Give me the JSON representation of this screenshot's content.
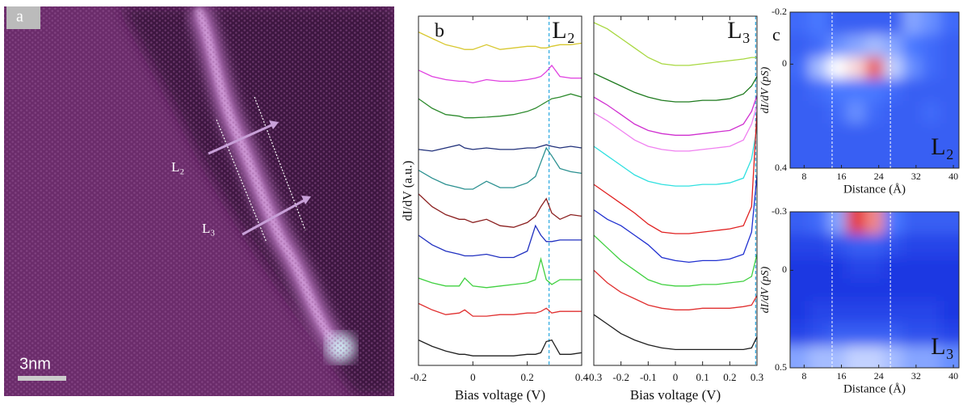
{
  "panel_a": {
    "label": "a",
    "line_labels": [
      "L₂",
      "L₃"
    ],
    "scale_bar": "3nm"
  },
  "chart_data": [
    {
      "type": "line",
      "label": "b",
      "inset_label": "L₂",
      "xlabel": "Bias voltage (V)",
      "ylabel": "dI/dV (a.u.)",
      "x": [
        -0.2,
        -0.15,
        -0.1,
        -0.05,
        -0.03,
        0,
        0.05,
        0.1,
        0.15,
        0.2,
        0.23,
        0.25,
        0.27,
        0.29,
        0.32,
        0.36,
        0.4
      ],
      "xlim": [
        -0.2,
        0.4
      ],
      "xticks": [
        -0.2,
        0,
        0.2,
        0.4
      ],
      "ylim": [
        0,
        11
      ],
      "vlines": [
        0.28
      ],
      "vline_color": "#2aa8e0",
      "series": [
        {
          "color": "#d8c830",
          "values": [
            10.5,
            10.3,
            10.1,
            10.0,
            9.95,
            9.95,
            10.1,
            9.95,
            10.0,
            10.05,
            10.05,
            10.0,
            10.0,
            10.05,
            10.1,
            10.1,
            10.15
          ]
        },
        {
          "color": "#e040e0",
          "values": [
            9.3,
            9.1,
            9.0,
            8.95,
            8.95,
            8.9,
            9.0,
            8.95,
            8.95,
            9.0,
            9.05,
            9.1,
            9.25,
            9.45,
            9.1,
            9.05,
            9.05
          ]
        },
        {
          "color": "#2e8b2e",
          "values": [
            8.4,
            8.1,
            7.9,
            7.85,
            7.8,
            7.8,
            7.82,
            7.85,
            7.9,
            8.0,
            8.1,
            8.2,
            8.3,
            8.4,
            8.45,
            8.55,
            8.45
          ]
        },
        {
          "color": "#20307a",
          "values": [
            6.8,
            6.75,
            6.85,
            6.95,
            6.85,
            6.8,
            6.85,
            6.8,
            6.8,
            6.85,
            6.85,
            6.9,
            6.95,
            6.9,
            6.85,
            6.9,
            6.85
          ]
        },
        {
          "color": "#2a9090",
          "values": [
            6.15,
            5.9,
            5.7,
            5.6,
            5.55,
            5.55,
            5.8,
            5.6,
            5.6,
            5.75,
            5.95,
            6.4,
            6.85,
            6.6,
            6.2,
            6.1,
            6.05
          ]
        },
        {
          "color": "#8b2020",
          "values": [
            5.4,
            5.0,
            4.75,
            4.6,
            4.6,
            4.5,
            4.6,
            4.4,
            4.35,
            4.5,
            4.7,
            5.0,
            5.25,
            4.8,
            4.6,
            4.75,
            4.7
          ]
        },
        {
          "color": "#2030c0",
          "values": [
            4.1,
            3.8,
            3.6,
            3.5,
            3.45,
            3.45,
            3.5,
            3.4,
            3.4,
            3.6,
            4.4,
            4.1,
            3.9,
            3.9,
            3.95,
            3.95,
            3.95
          ]
        },
        {
          "color": "#40d040",
          "values": [
            2.75,
            2.6,
            2.5,
            2.5,
            2.75,
            2.5,
            2.45,
            2.5,
            2.55,
            2.6,
            2.7,
            3.35,
            2.7,
            2.55,
            2.7,
            2.7,
            2.7
          ]
        },
        {
          "color": "#e03030",
          "values": [
            1.95,
            1.75,
            1.6,
            1.65,
            1.75,
            1.55,
            1.55,
            1.6,
            1.6,
            1.65,
            1.65,
            1.7,
            1.8,
            1.65,
            1.7,
            1.7,
            1.7
          ]
        },
        {
          "color": "#202020",
          "values": [
            0.8,
            0.6,
            0.45,
            0.35,
            0.35,
            0.3,
            0.3,
            0.3,
            0.3,
            0.35,
            0.35,
            0.4,
            0.75,
            0.8,
            0.35,
            0.35,
            0.4
          ]
        }
      ]
    },
    {
      "type": "line",
      "inset_label": "L₃",
      "xlabel": "Bias voltage (V)",
      "x": [
        -0.3,
        -0.25,
        -0.2,
        -0.15,
        -0.1,
        -0.05,
        0,
        0.05,
        0.1,
        0.15,
        0.2,
        0.25,
        0.28,
        0.3
      ],
      "xlim": [
        -0.3,
        0.3
      ],
      "xticks": [
        -0.3,
        -0.2,
        -0.1,
        0,
        0.1,
        0.2,
        0.3
      ],
      "ylim": [
        0,
        11
      ],
      "vlines": [
        0.295
      ],
      "vline_color": "#2aa8e0",
      "series": [
        {
          "color": "#a8d840",
          "values": [
            10.8,
            10.6,
            10.3,
            10.0,
            9.7,
            9.5,
            9.45,
            9.45,
            9.5,
            9.55,
            9.6,
            9.65,
            9.7,
            9.7
          ]
        },
        {
          "color": "#1e7a1e",
          "values": [
            9.2,
            9.0,
            8.8,
            8.6,
            8.45,
            8.35,
            8.3,
            8.3,
            8.35,
            8.35,
            8.4,
            8.55,
            8.8,
            9.1
          ]
        },
        {
          "color": "#d030d0",
          "values": [
            8.45,
            8.2,
            7.9,
            7.6,
            7.4,
            7.3,
            7.25,
            7.25,
            7.3,
            7.35,
            7.4,
            7.6,
            8.0,
            8.5
          ]
        },
        {
          "color": "#f080f0",
          "values": [
            7.95,
            7.7,
            7.4,
            7.1,
            6.9,
            6.8,
            6.75,
            6.75,
            6.8,
            6.85,
            6.9,
            7.1,
            7.6,
            8.2
          ]
        },
        {
          "color": "#30e0e0",
          "values": [
            6.9,
            6.6,
            6.3,
            6.0,
            5.8,
            5.7,
            5.65,
            5.65,
            5.7,
            5.7,
            5.75,
            5.9,
            6.5,
            7.5
          ]
        },
        {
          "color": "#e02020",
          "values": [
            5.7,
            5.4,
            5.1,
            4.8,
            4.45,
            4.2,
            4.15,
            4.15,
            4.2,
            4.25,
            4.3,
            4.4,
            5.0,
            8.0
          ]
        },
        {
          "color": "#2030d0",
          "values": [
            4.9,
            4.6,
            4.4,
            4.1,
            3.8,
            3.4,
            3.3,
            3.25,
            3.3,
            3.3,
            3.35,
            3.5,
            4.2,
            6.0
          ]
        },
        {
          "color": "#40d040",
          "values": [
            4.1,
            3.7,
            3.3,
            3.0,
            2.7,
            2.55,
            2.5,
            2.5,
            2.55,
            2.55,
            2.6,
            2.65,
            2.8,
            3.5
          ]
        },
        {
          "color": "#e03030",
          "values": [
            3.0,
            2.6,
            2.3,
            2.1,
            1.9,
            1.8,
            1.75,
            1.75,
            1.8,
            1.8,
            1.8,
            1.85,
            1.9,
            2.2
          ]
        },
        {
          "color": "#202020",
          "values": [
            1.6,
            1.3,
            1.0,
            0.8,
            0.65,
            0.55,
            0.5,
            0.5,
            0.5,
            0.5,
            0.5,
            0.5,
            0.55,
            0.9
          ]
        }
      ]
    },
    {
      "type": "heatmap",
      "label": "c",
      "inset_label": "L₂",
      "xlabel": "Distance (Å)",
      "ylabel": "dI/dV (pS)",
      "xlim": [
        5,
        41.2
      ],
      "xticks": [
        8,
        16,
        24,
        32,
        40
      ],
      "ylim": [
        -0.2,
        0.4
      ],
      "yticks": [
        -0.2,
        0,
        0.4
      ],
      "vlines": [
        14,
        26.5
      ],
      "values": [
        [
          0.35,
          0.4,
          0.3,
          0.3,
          0.3,
          0.3,
          0.5,
          0.45,
          0.35
        ],
        [
          0.3,
          0.35,
          0.45,
          0.5,
          0.55,
          0.5,
          0.4,
          0.35,
          0.3
        ],
        [
          0.35,
          0.55,
          0.7,
          0.75,
          0.9,
          0.6,
          0.45,
          0.35,
          0.3
        ],
        [
          0.3,
          0.35,
          0.4,
          0.4,
          0.4,
          0.35,
          0.3,
          0.3,
          0.3
        ],
        [
          0.3,
          0.3,
          0.35,
          0.45,
          0.35,
          0.3,
          0.3,
          0.35,
          0.3
        ],
        [
          0.3,
          0.3,
          0.3,
          0.3,
          0.3,
          0.3,
          0.3,
          0.3,
          0.3
        ],
        [
          0.3,
          0.3,
          0.3,
          0.3,
          0.3,
          0.3,
          0.3,
          0.3,
          0.3
        ]
      ]
    },
    {
      "type": "heatmap",
      "inset_label": "L₃",
      "xlabel": "Distance (Å)",
      "ylabel": "dI/dV (pS)",
      "xlim": [
        5,
        41.2
      ],
      "xticks": [
        8,
        16,
        24,
        32,
        40
      ],
      "ylim": [
        -0.3,
        0.5
      ],
      "yticks": [
        -0.3,
        0,
        0.5
      ],
      "vlines": [
        14,
        26.5
      ],
      "values": [
        [
          0.3,
          0.35,
          0.5,
          0.95,
          0.85,
          0.4,
          0.3,
          0.3,
          0.3
        ],
        [
          0.2,
          0.2,
          0.25,
          0.3,
          0.3,
          0.25,
          0.2,
          0.2,
          0.2
        ],
        [
          0.15,
          0.15,
          0.15,
          0.2,
          0.2,
          0.15,
          0.15,
          0.15,
          0.15
        ],
        [
          0.15,
          0.15,
          0.15,
          0.15,
          0.15,
          0.15,
          0.15,
          0.15,
          0.15
        ],
        [
          0.15,
          0.2,
          0.2,
          0.2,
          0.2,
          0.2,
          0.2,
          0.2,
          0.15
        ],
        [
          0.2,
          0.25,
          0.3,
          0.3,
          0.3,
          0.3,
          0.25,
          0.25,
          0.2
        ],
        [
          0.5,
          0.55,
          0.55,
          0.6,
          0.6,
          0.55,
          0.5,
          0.5,
          0.45
        ]
      ]
    }
  ]
}
